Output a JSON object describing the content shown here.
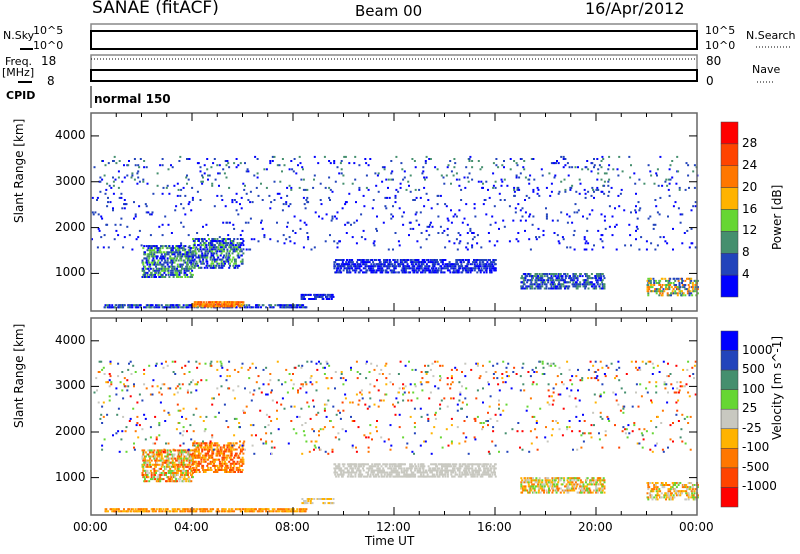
{
  "header": {
    "station": "SANAE (fitACF)",
    "beam": "Beam 00",
    "date": "16/Apr/2012"
  },
  "nsky_panel": {
    "left_label": "N.Sky",
    "right_label": "N.Search",
    "left_ticks": [
      "10^5",
      "10^0"
    ],
    "right_ticks": [
      "10^5",
      "10^0"
    ]
  },
  "freq_panel": {
    "left_label": "Freq.",
    "left_unit": "[MHz]",
    "right_label": "Nave",
    "left_ticks": [
      "18",
      "8"
    ],
    "right_ticks": [
      "80",
      "0"
    ]
  },
  "cpid": {
    "label": "CPID",
    "value": "normal 150"
  },
  "chart_data": [
    {
      "type": "heatmap",
      "name": "power",
      "ylabel": "Slant Range [km]",
      "xlabel": "",
      "xlim": [
        0,
        24
      ],
      "ylim": [
        180,
        4500
      ],
      "yticks": [
        "1000",
        "2000",
        "3000",
        "4000"
      ],
      "colorbar": {
        "label": "Power [dB]",
        "ticks": [
          "28",
          "24",
          "20",
          "16",
          "12",
          "8",
          "4"
        ],
        "colors": [
          "#ff0000",
          "#ff4400",
          "#ff7700",
          "#ffb300",
          "#66d633",
          "#458f6e",
          "#2244bb",
          "#0000ff"
        ]
      },
      "regions": [
        {
          "t": [
            0.5,
            8.5
          ],
          "r": [
            240,
            330
          ],
          "level": [
            5,
            7
          ],
          "density": 0.5
        },
        {
          "t": [
            4,
            6
          ],
          "r": [
            260,
            360
          ],
          "level": [
            1,
            3
          ],
          "density": 0.7
        },
        {
          "t": [
            2,
            4
          ],
          "r": [
            900,
            1600
          ],
          "level": [
            4,
            7
          ],
          "density": 0.45
        },
        {
          "t": [
            4,
            6
          ],
          "r": [
            1100,
            1750
          ],
          "level": [
            4,
            7
          ],
          "density": 0.4
        },
        {
          "t": [
            8.3,
            9.6
          ],
          "r": [
            420,
            520
          ],
          "level": [
            6,
            7
          ],
          "density": 0.5
        },
        {
          "t": [
            9.6,
            16
          ],
          "r": [
            1000,
            1300
          ],
          "level": [
            6,
            7
          ],
          "density": 0.45
        },
        {
          "t": [
            17,
            20.3
          ],
          "r": [
            650,
            1000
          ],
          "level": [
            5,
            7
          ],
          "density": 0.45
        },
        {
          "t": [
            22,
            24
          ],
          "r": [
            500,
            900
          ],
          "level": [
            2,
            6
          ],
          "density": 0.35
        },
        {
          "t": [
            0,
            24
          ],
          "r": [
            2800,
            3550
          ],
          "level": [
            5,
            7
          ],
          "density": 0.04
        },
        {
          "t": [
            0,
            24
          ],
          "r": [
            1500,
            2800
          ],
          "level": [
            6,
            7
          ],
          "density": 0.025
        }
      ]
    },
    {
      "type": "heatmap",
      "name": "velocity",
      "ylabel": "Slant Range [km]",
      "xlabel": "Time UT",
      "xlim": [
        0,
        24
      ],
      "ylim": [
        180,
        4500
      ],
      "xticks": [
        "00:00",
        "04:00",
        "08:00",
        "12:00",
        "16:00",
        "20:00",
        "00:00"
      ],
      "yticks": [
        "1000",
        "2000",
        "3000",
        "4000"
      ],
      "colorbar": {
        "label": "Velocity [m s^-1]",
        "ticks": [
          "1000",
          "500",
          "100",
          "25",
          "-25",
          "-100",
          "-500",
          "-1000"
        ],
        "colors": [
          "#0000ff",
          "#2244bb",
          "#458f6e",
          "#66d633",
          "#c8c8c0",
          "#ffb300",
          "#ff7700",
          "#ff4400",
          "#ff0000"
        ]
      },
      "regions": [
        {
          "t": [
            0.5,
            8.5
          ],
          "r": [
            240,
            330
          ],
          "level": [
            5,
            6
          ],
          "density": 0.55
        },
        {
          "t": [
            2,
            4
          ],
          "r": [
            900,
            1600
          ],
          "level": [
            3,
            7
          ],
          "density": 0.45
        },
        {
          "t": [
            4,
            6
          ],
          "r": [
            1100,
            1750
          ],
          "level": [
            5,
            7
          ],
          "density": 0.4
        },
        {
          "t": [
            8.3,
            9.6
          ],
          "r": [
            420,
            520
          ],
          "level": [
            4,
            5
          ],
          "density": 0.4
        },
        {
          "t": [
            9.6,
            16
          ],
          "r": [
            1000,
            1300
          ],
          "level": [
            4,
            4
          ],
          "density": 0.45
        },
        {
          "t": [
            17,
            20.3
          ],
          "r": [
            650,
            1000
          ],
          "level": [
            3,
            6
          ],
          "density": 0.45
        },
        {
          "t": [
            22,
            24
          ],
          "r": [
            500,
            900
          ],
          "level": [
            3,
            6
          ],
          "density": 0.35
        },
        {
          "t": [
            0,
            24
          ],
          "r": [
            2800,
            3550
          ],
          "level": [
            0,
            8
          ],
          "density": 0.04
        },
        {
          "t": [
            0,
            24
          ],
          "r": [
            1500,
            2800
          ],
          "level": [
            0,
            8
          ],
          "density": 0.025
        }
      ]
    }
  ]
}
